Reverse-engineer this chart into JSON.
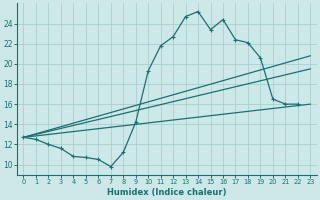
{
  "xlabel": "Humidex (Indice chaleur)",
  "background_color": "#cce8e8",
  "grid_color": "#aacfcf",
  "line_color": "#1a7070",
  "xlim": [
    -0.5,
    23.5
  ],
  "ylim": [
    9.0,
    26.0
  ],
  "xticks": [
    0,
    1,
    2,
    3,
    4,
    5,
    6,
    7,
    8,
    9,
    10,
    11,
    12,
    13,
    14,
    15,
    16,
    17,
    18,
    19,
    20,
    21,
    22,
    23
  ],
  "yticks": [
    10,
    12,
    14,
    16,
    18,
    20,
    22,
    24
  ],
  "series1_x": [
    0,
    1,
    2,
    3,
    4,
    5,
    6,
    7,
    8,
    9,
    10,
    11,
    12,
    13,
    14,
    15,
    16,
    17,
    18,
    19,
    20,
    21,
    22
  ],
  "series1_y": [
    12.7,
    12.5,
    12.0,
    11.6,
    10.8,
    10.7,
    10.5,
    9.8,
    11.2,
    14.2,
    19.3,
    21.8,
    22.7,
    24.7,
    25.2,
    23.4,
    24.4,
    22.4,
    22.1,
    20.6,
    16.5,
    16.0,
    16.0
  ],
  "line2_x": [
    0,
    23
  ],
  "line2_y": [
    12.7,
    16.0
  ],
  "line3_x": [
    0,
    23
  ],
  "line3_y": [
    12.7,
    19.5
  ],
  "line4_x": [
    0,
    23
  ],
  "line4_y": [
    12.7,
    20.8
  ]
}
